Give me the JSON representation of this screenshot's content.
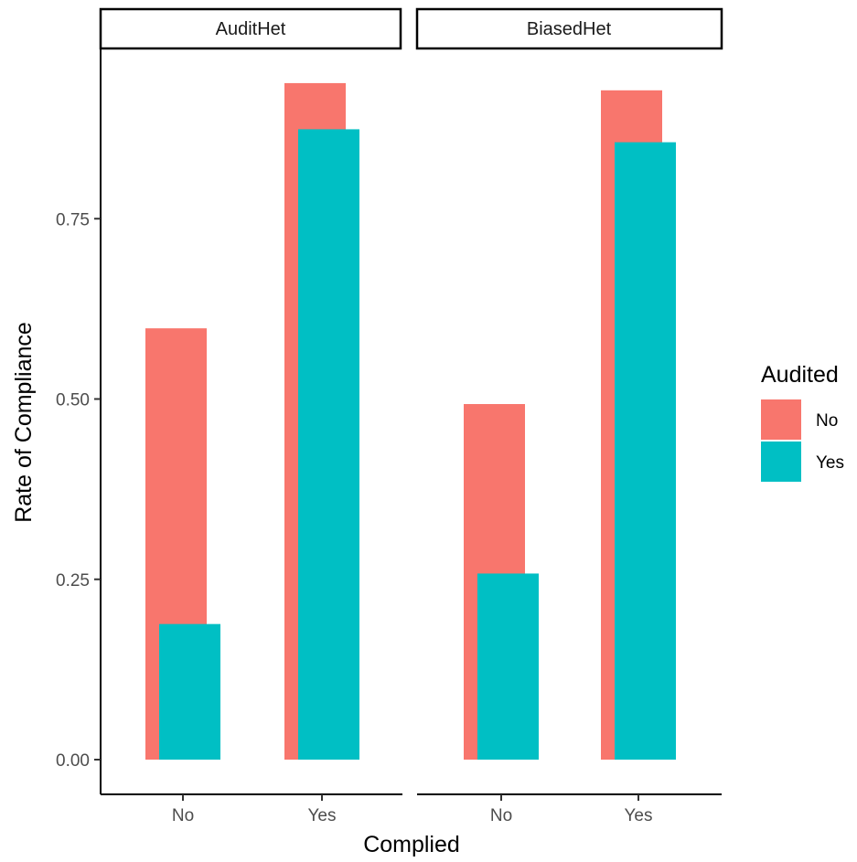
{
  "chart_data": {
    "type": "bar",
    "facets": [
      "AuditHet",
      "BiasedHet"
    ],
    "categories": [
      "No",
      "Yes"
    ],
    "xlabel": "Complied",
    "ylabel": "Rate of Compliance",
    "ylim": [
      0,
      0.95
    ],
    "yticks": [
      "0.00",
      "0.25",
      "0.50",
      "0.75"
    ],
    "legend": {
      "title": "Audited",
      "placement": "right",
      "entries": [
        {
          "label": "No",
          "color": "#F8766D"
        },
        {
          "label": "Yes",
          "color": "#00BFC4"
        }
      ]
    },
    "panels": [
      {
        "facet": "AuditHet",
        "series": [
          {
            "audited": "No",
            "values": [
              0.598,
              0.938
            ]
          },
          {
            "audited": "Yes",
            "values": [
              0.188,
              0.874
            ]
          }
        ]
      },
      {
        "facet": "BiasedHet",
        "series": [
          {
            "audited": "No",
            "values": [
              0.493,
              0.928
            ]
          },
          {
            "audited": "Yes",
            "values": [
              0.258,
              0.856
            ]
          }
        ]
      }
    ],
    "grid": false
  }
}
